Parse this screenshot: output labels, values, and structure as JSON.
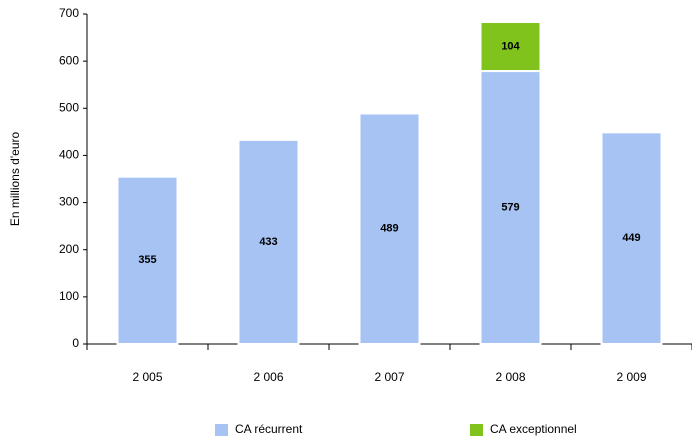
{
  "chart_data": {
    "type": "stacked_bar",
    "y_label": "En millions d'euro",
    "categories": [
      "2 005",
      "2 006",
      "2 007",
      "2 008",
      "2 009"
    ],
    "series": [
      {
        "name": "CA récurrent",
        "color": "#a6c3f3",
        "values": [
          355,
          433,
          489,
          579,
          449
        ]
      },
      {
        "name": "CA exceptionnel",
        "color": "#7fc31c",
        "values": [
          null,
          null,
          null,
          104,
          null
        ]
      }
    ],
    "ylim": [
      0,
      700
    ],
    "yticks": [
      0,
      100,
      200,
      300,
      400,
      500,
      600,
      700
    ],
    "grid": false,
    "legend": "bottom"
  }
}
